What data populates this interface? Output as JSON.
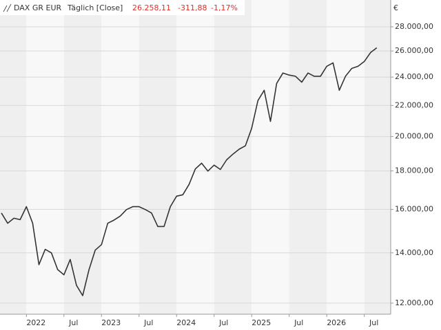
{
  "chart_data": {
    "type": "line",
    "header": {
      "interval": "Täglich [Close]",
      "last": "26.258,11",
      "change": "-311,88",
      "change_pct": "-1,17%"
    },
    "currency": "€",
    "log_scale": true,
    "grid": true,
    "x": [
      "2021-09",
      "2021-10",
      "2021-11",
      "2021-12",
      "2022-01",
      "2022-02",
      "2022-03",
      "2022-04",
      "2022-05",
      "2022-06",
      "2022-07",
      "2022-08",
      "2022-09",
      "2022-10",
      "2022-11",
      "2022-12",
      "2023-01",
      "2023-02",
      "2023-03",
      "2023-04",
      "2023-05",
      "2023-06",
      "2023-07",
      "2023-08",
      "2023-09",
      "2023-10",
      "2023-11",
      "2023-12",
      "2024-01",
      "2024-02",
      "2024-03",
      "2024-04",
      "2024-05",
      "2024-06",
      "2024-07",
      "2024-08",
      "2024-09",
      "2024-10",
      "2024-11",
      "2024-12",
      "2025-01",
      "2025-02",
      "2025-03",
      "2025-04",
      "2025-05",
      "2025-06",
      "2025-07",
      "2025-08",
      "2025-09",
      "2025-10",
      "2025-11",
      "2025-12",
      "2026-01",
      "2026-02",
      "2026-03",
      "2026-04",
      "2026-05",
      "2026-06",
      "2026-07",
      "2026-08",
      "2026-09"
    ],
    "series": [
      {
        "name": "DAX GR EUR",
        "color": "#333333",
        "values": [
          15820,
          15330,
          15570,
          15500,
          16130,
          15330,
          13500,
          14150,
          14000,
          13300,
          13090,
          13720,
          12670,
          12280,
          13290,
          14120,
          14360,
          15330,
          15480,
          15670,
          15990,
          16130,
          16130,
          15990,
          15820,
          15180,
          15180,
          16130,
          16660,
          16730,
          17270,
          18110,
          18430,
          17990,
          18320,
          18080,
          18620,
          18950,
          19240,
          19440,
          20510,
          22330,
          23050,
          20950,
          23540,
          24300,
          24150,
          24060,
          23630,
          24300,
          24060,
          24060,
          24810,
          25070,
          23050,
          24060,
          24650,
          24810,
          25180,
          25880,
          26258
        ]
      }
    ],
    "xlim": [
      "2021-09",
      "2026-11"
    ],
    "xticks": [
      {
        "value": "2022-01",
        "label": "2022"
      },
      {
        "value": "2022-07",
        "label": "Jul"
      },
      {
        "value": "2023-01",
        "label": "2023"
      },
      {
        "value": "2023-07",
        "label": "Jul"
      },
      {
        "value": "2024-01",
        "label": "2024"
      },
      {
        "value": "2024-07",
        "label": "Jul"
      },
      {
        "value": "2025-01",
        "label": "2025"
      },
      {
        "value": "2025-07",
        "label": "Jul"
      },
      {
        "value": "2026-01",
        "label": "2026"
      },
      {
        "value": "2026-07",
        "label": "Jul"
      }
    ],
    "ylim": [
      11600,
      30400
    ],
    "yticks": [
      {
        "value": 12000,
        "label": "12.000,00"
      },
      {
        "value": 14000,
        "label": "14.000,00"
      },
      {
        "value": 16000,
        "label": "16.000,00"
      },
      {
        "value": 18000,
        "label": "18.000,00"
      },
      {
        "value": 20000,
        "label": "20.000,00"
      },
      {
        "value": 22000,
        "label": "22.000,00"
      },
      {
        "value": 24000,
        "label": "24.000,00"
      },
      {
        "value": 26000,
        "label": "26.000,00"
      },
      {
        "value": 28000,
        "label": "28.000,00"
      }
    ]
  }
}
